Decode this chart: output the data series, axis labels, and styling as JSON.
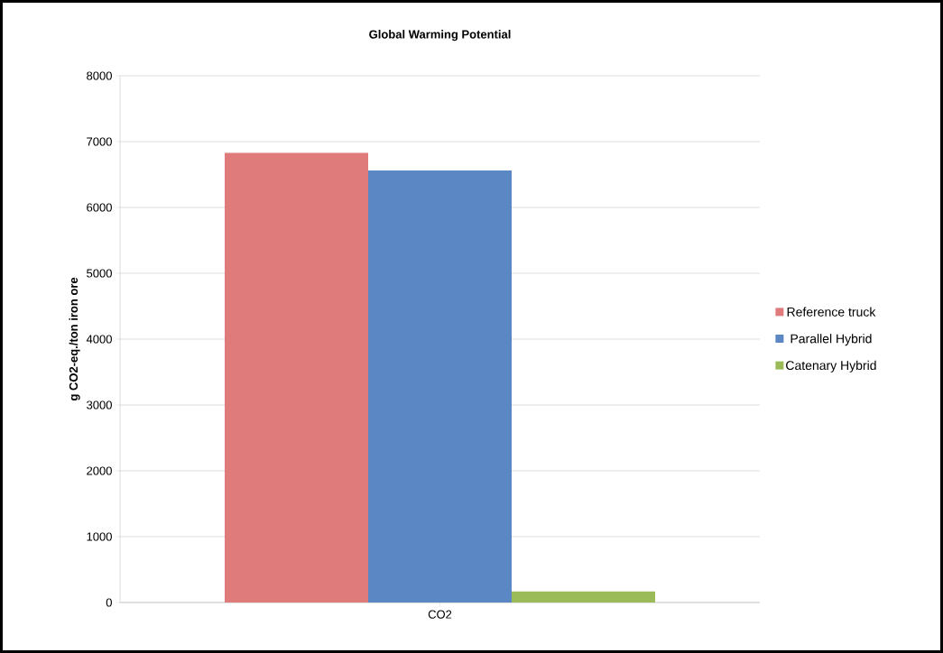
{
  "chart_data": {
    "type": "bar",
    "title": "Global Warming Potential",
    "ylabel": "g CO2-eq./ton iron ore",
    "categories": [
      "CO2"
    ],
    "series": [
      {
        "name": "Reference truck",
        "color": "#e07b7b",
        "values": [
          6830
        ]
      },
      {
        "name": "Parallel Hybrid",
        "color": "#5b87c5",
        "values": [
          6560
        ]
      },
      {
        "name": "Catenary Hybrid",
        "color": "#9bbb59",
        "values": [
          170
        ]
      }
    ],
    "ylim": [
      0,
      8000
    ],
    "yticks": [
      0,
      1000,
      2000,
      3000,
      4000,
      5000,
      6000,
      7000,
      8000
    ],
    "grid": "y",
    "legend": "right"
  }
}
